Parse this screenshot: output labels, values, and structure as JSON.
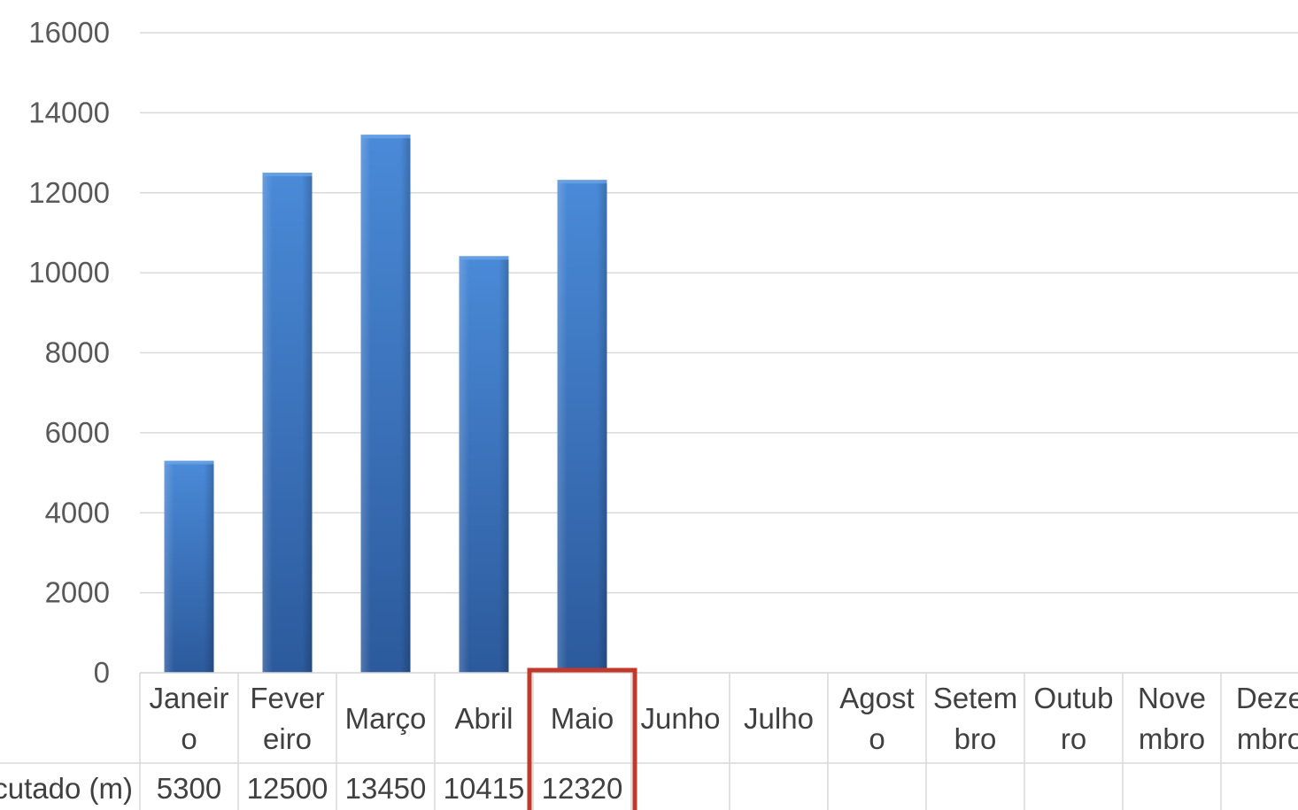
{
  "chart_data": {
    "type": "bar",
    "title": "",
    "xlabel": "",
    "ylabel": "",
    "ylim": [
      0,
      16000
    ],
    "yticks": [
      0,
      2000,
      4000,
      6000,
      8000,
      10000,
      12000,
      14000,
      16000
    ],
    "grid": true,
    "legend": "none",
    "categories": [
      [
        "Janeir",
        "o"
      ],
      [
        "Fever",
        "eiro"
      ],
      [
        "Março"
      ],
      [
        "Abril"
      ],
      [
        "Maio"
      ],
      [
        "Junho"
      ],
      [
        "Julho"
      ],
      [
        "Agost",
        "o"
      ],
      [
        "Setem",
        "bro"
      ],
      [
        "Outub",
        "ro"
      ],
      [
        "Nove",
        "mbro"
      ],
      [
        "Deze",
        "mbro"
      ]
    ],
    "series": [
      {
        "name": "Executado (m)",
        "values": [
          5300,
          12500,
          13450,
          10415,
          12320,
          null,
          null,
          null,
          null,
          null,
          null,
          null
        ]
      }
    ],
    "data_table": {
      "row_label": "Executado (m)"
    },
    "highlight": {
      "category": "Maio",
      "color": "#c0392b"
    },
    "colors": {
      "bar": "#3a76c4",
      "bar_dark": "#2c5c9e",
      "grid": "#d9d9d9",
      "table_border": "#d9d9d9"
    }
  }
}
